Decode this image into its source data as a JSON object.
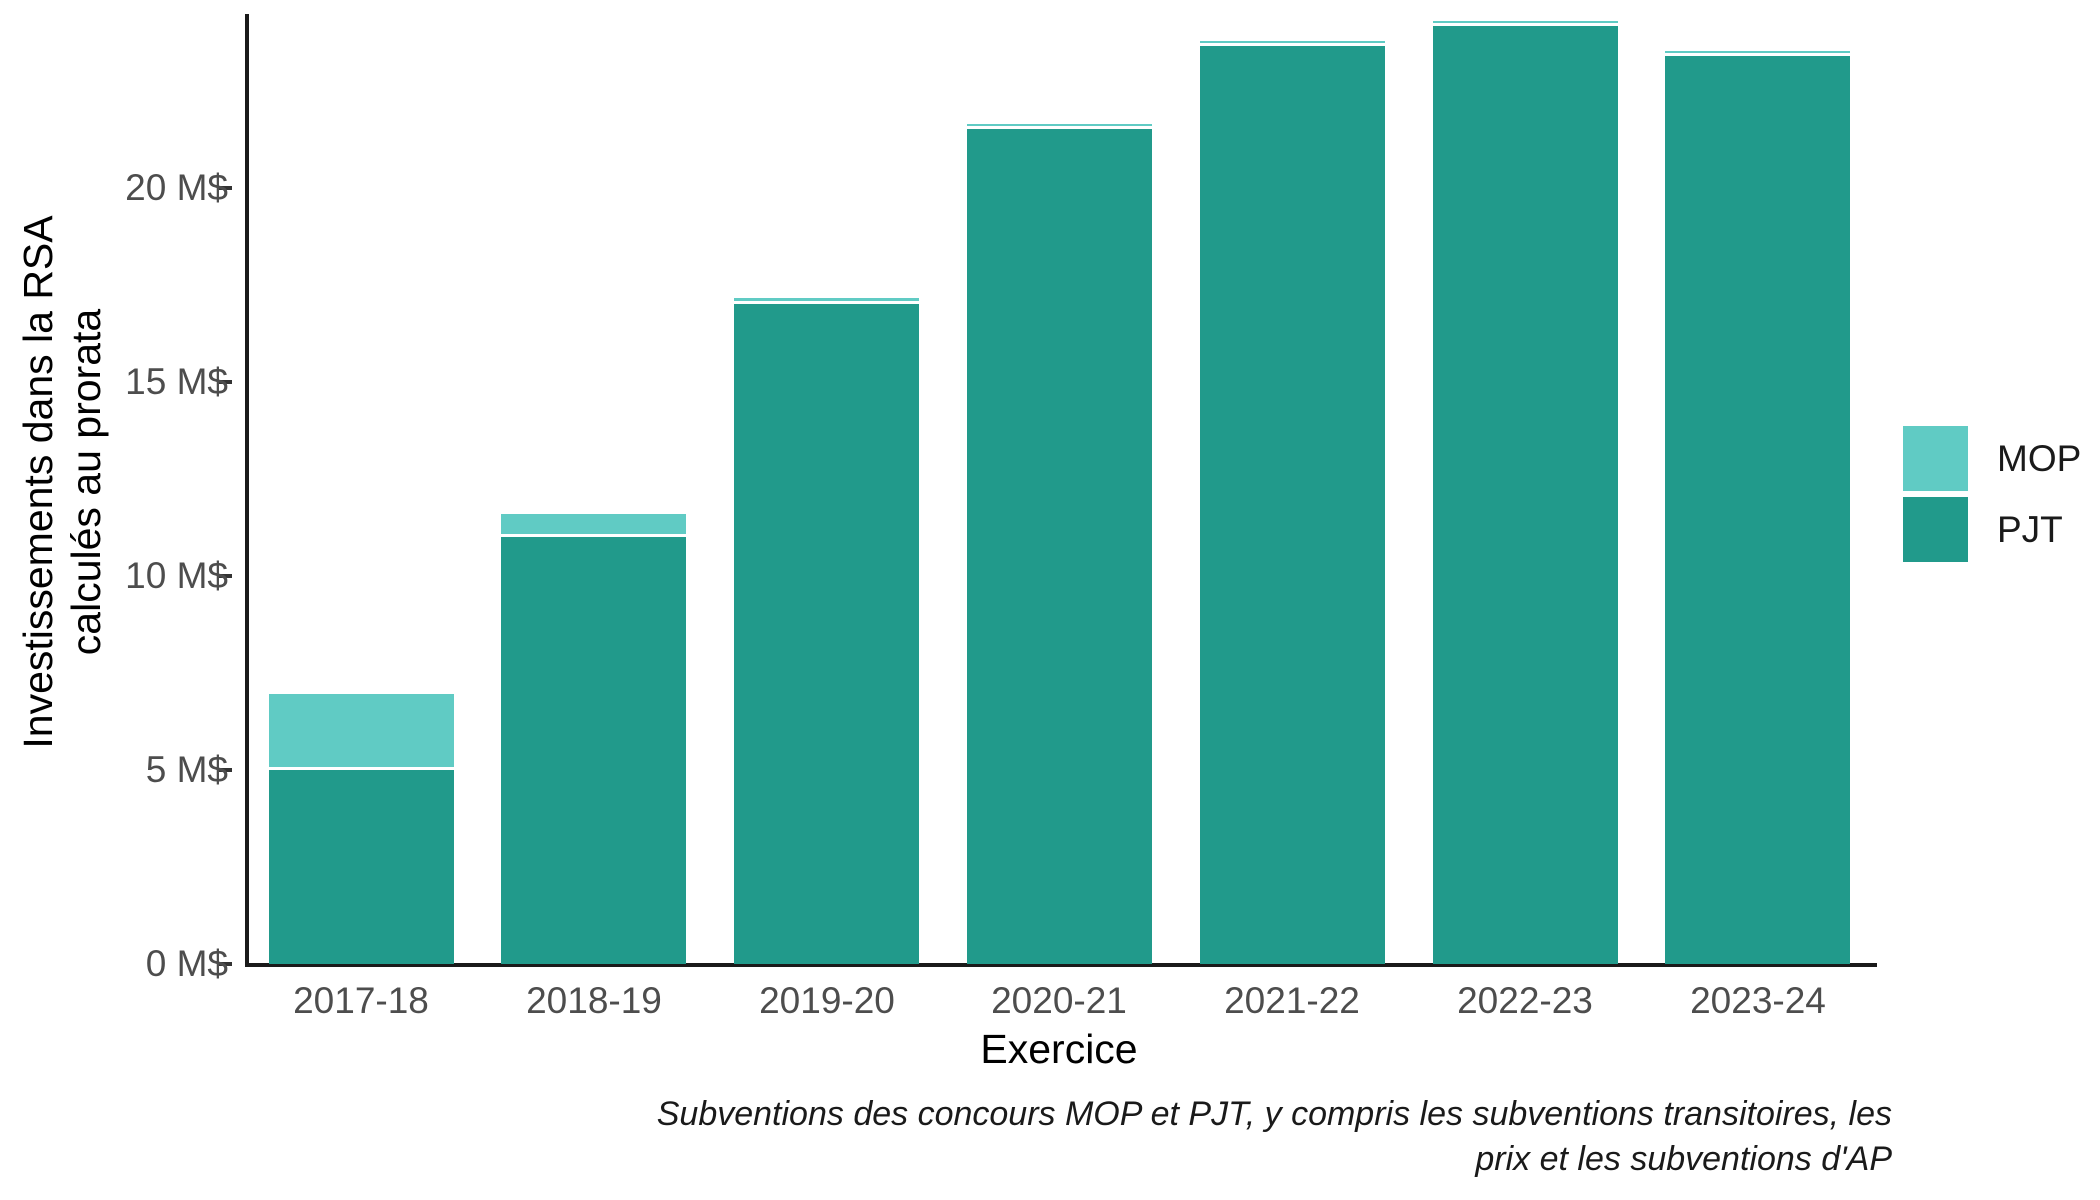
{
  "chart_data": {
    "type": "bar",
    "stacked": true,
    "categories": [
      "2017-18",
      "2018-19",
      "2019-20",
      "2020-21",
      "2021-22",
      "2022-23",
      "2023-24"
    ],
    "series": [
      {
        "name": "PJT",
        "color": "#219a8b",
        "values": [
          5.0,
          11.0,
          17.0,
          21.5,
          23.65,
          24.15,
          23.4
        ]
      },
      {
        "name": "MOP",
        "color": "#60cbc4",
        "values": [
          1.95,
          0.6,
          0.15,
          0.05,
          0.05,
          0.05,
          0.05
        ]
      }
    ],
    "totals": [
      6.95,
      11.6,
      17.15,
      21.55,
      23.7,
      24.2,
      23.45
    ],
    "title": "",
    "xlabel": "Exercice",
    "ylabel": "Investissements dans la RSA calculés au prorata",
    "ylabel_lines": [
      "Investissements dans la RSA",
      "calculés au prorata"
    ],
    "yticks": {
      "values": [
        0,
        5,
        10,
        15,
        20
      ],
      "labels": [
        "0 M$",
        "5 M$",
        "10 M$",
        "15 M$",
        "20 M$"
      ]
    },
    "ylim": [
      0,
      24.8
    ],
    "grid": false,
    "legend_position": "right",
    "segment_separator_color": "#ffffff",
    "caption_lines": [
      "Subventions des concours MOP et PJT, y compris les subventions transitoires, les",
      "prix et les subventions d'AP"
    ]
  },
  "legend": {
    "items": [
      {
        "label": "MOP",
        "color": "#60cbc4"
      },
      {
        "label": "PJT",
        "color": "#219a8b"
      }
    ]
  },
  "axes": {
    "axis_line_color": "#1a1a1a",
    "tick_color": "#333333",
    "tick_label_color": "#4d4d4d"
  }
}
